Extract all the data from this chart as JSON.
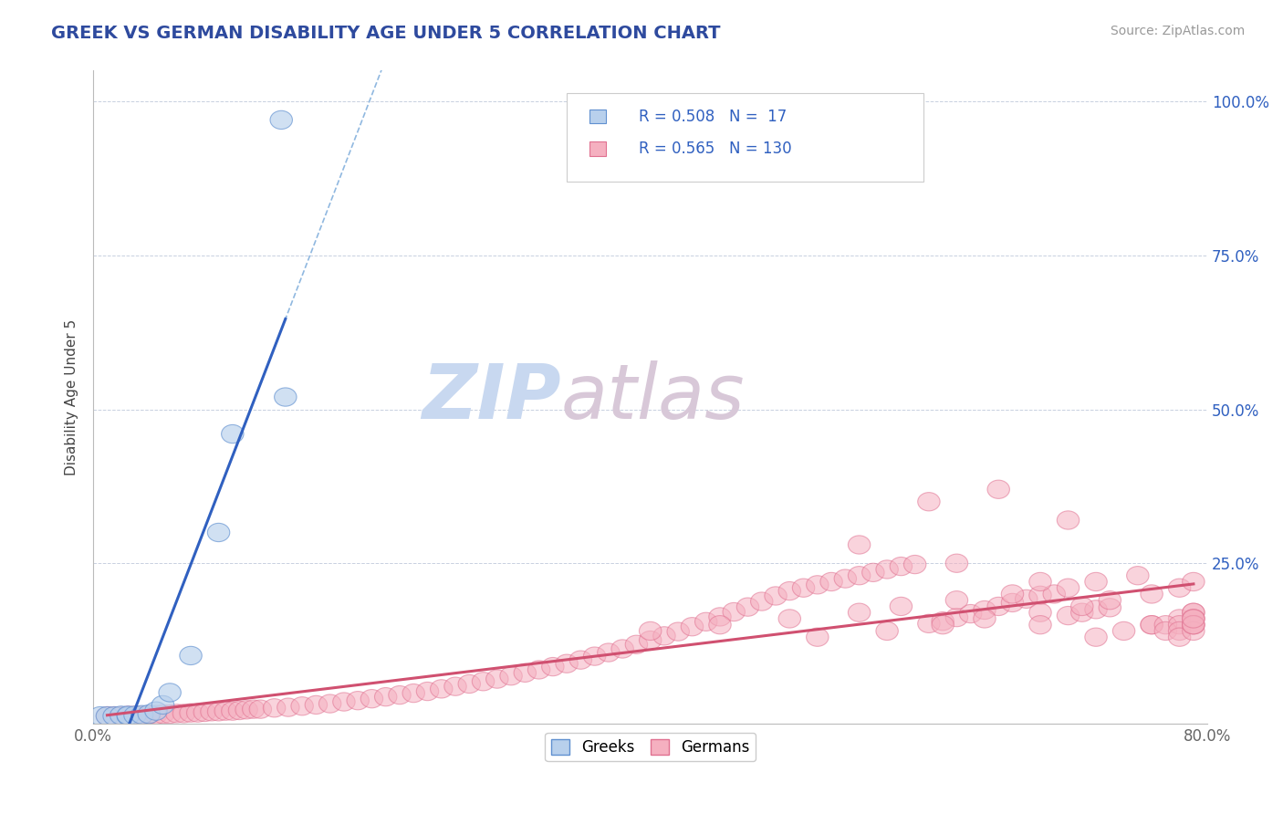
{
  "title": "GREEK VS GERMAN DISABILITY AGE UNDER 5 CORRELATION CHART",
  "source_text": "Source: ZipAtlas.com",
  "ylabel": "Disability Age Under 5",
  "ytick_labels": [
    "25.0%",
    "50.0%",
    "75.0%",
    "100.0%"
  ],
  "ytick_values": [
    0.25,
    0.5,
    0.75,
    1.0
  ],
  "xlim": [
    0.0,
    0.8
  ],
  "ylim": [
    -0.01,
    1.05
  ],
  "greek_R": 0.508,
  "greek_N": 17,
  "german_R": 0.565,
  "german_N": 130,
  "title_color": "#2E4A9E",
  "title_fontsize": 14,
  "greek_color": "#b8d0ec",
  "german_color": "#f5b0c0",
  "greek_edge_color": "#6090d0",
  "german_edge_color": "#e07090",
  "greek_line_color": "#3060c0",
  "german_line_color": "#d05070",
  "dashed_line_color": "#90b8e0",
  "watermark_zip_color": "#c8d8f0",
  "watermark_atlas_color": "#d8c8d8",
  "background_color": "#ffffff",
  "legend_color": "#3060c0",
  "greek_scatter_x": [
    0.005,
    0.01,
    0.015,
    0.02,
    0.025,
    0.025,
    0.03,
    0.035,
    0.04,
    0.045,
    0.05,
    0.055,
    0.07,
    0.09,
    0.1,
    0.135,
    0.138
  ],
  "greek_scatter_y": [
    0.002,
    0.002,
    0.002,
    0.003,
    0.002,
    0.003,
    0.003,
    0.004,
    0.005,
    0.01,
    0.02,
    0.04,
    0.1,
    0.3,
    0.46,
    0.97,
    0.52
  ],
  "german_scatter_x": [
    0.01,
    0.015,
    0.02,
    0.025,
    0.03,
    0.035,
    0.04,
    0.045,
    0.05,
    0.055,
    0.06,
    0.065,
    0.07,
    0.075,
    0.08,
    0.085,
    0.09,
    0.095,
    0.1,
    0.105,
    0.11,
    0.115,
    0.12,
    0.13,
    0.14,
    0.15,
    0.16,
    0.17,
    0.18,
    0.19,
    0.2,
    0.21,
    0.22,
    0.23,
    0.24,
    0.25,
    0.26,
    0.27,
    0.28,
    0.29,
    0.3,
    0.31,
    0.32,
    0.33,
    0.34,
    0.35,
    0.36,
    0.37,
    0.38,
    0.39,
    0.4,
    0.41,
    0.42,
    0.43,
    0.44,
    0.45,
    0.46,
    0.47,
    0.48,
    0.49,
    0.5,
    0.51,
    0.52,
    0.53,
    0.54,
    0.55,
    0.56,
    0.57,
    0.58,
    0.59,
    0.6,
    0.61,
    0.62,
    0.63,
    0.64,
    0.65,
    0.66,
    0.67,
    0.68,
    0.69,
    0.7,
    0.71,
    0.72,
    0.73,
    0.6,
    0.65,
    0.7,
    0.55,
    0.62,
    0.68,
    0.4,
    0.45,
    0.5,
    0.55,
    0.58,
    0.62,
    0.66,
    0.7,
    0.72,
    0.75,
    0.52,
    0.57,
    0.61,
    0.64,
    0.68,
    0.71,
    0.73,
    0.76,
    0.78,
    0.79,
    0.72,
    0.68,
    0.74,
    0.76,
    0.78,
    0.79,
    0.76,
    0.77,
    0.79,
    0.79,
    0.77,
    0.78,
    0.79,
    0.78,
    0.79,
    0.78,
    0.79,
    0.79,
    0.79,
    0.79
  ],
  "german_scatter_y": [
    0.002,
    0.002,
    0.002,
    0.003,
    0.003,
    0.003,
    0.004,
    0.004,
    0.005,
    0.005,
    0.006,
    0.006,
    0.007,
    0.007,
    0.008,
    0.009,
    0.009,
    0.01,
    0.01,
    0.011,
    0.012,
    0.013,
    0.013,
    0.015,
    0.016,
    0.018,
    0.02,
    0.022,
    0.025,
    0.027,
    0.03,
    0.033,
    0.036,
    0.039,
    0.042,
    0.046,
    0.05,
    0.054,
    0.058,
    0.062,
    0.067,
    0.072,
    0.077,
    0.082,
    0.087,
    0.093,
    0.099,
    0.105,
    0.111,
    0.118,
    0.125,
    0.132,
    0.139,
    0.147,
    0.155,
    0.163,
    0.171,
    0.179,
    0.188,
    0.197,
    0.205,
    0.21,
    0.215,
    0.22,
    0.225,
    0.23,
    0.235,
    0.24,
    0.245,
    0.248,
    0.152,
    0.156,
    0.162,
    0.168,
    0.174,
    0.18,
    0.186,
    0.192,
    0.198,
    0.2,
    0.165,
    0.17,
    0.175,
    0.178,
    0.35,
    0.37,
    0.32,
    0.28,
    0.25,
    0.22,
    0.14,
    0.15,
    0.16,
    0.17,
    0.18,
    0.19,
    0.2,
    0.21,
    0.22,
    0.23,
    0.13,
    0.14,
    0.15,
    0.16,
    0.17,
    0.18,
    0.19,
    0.2,
    0.21,
    0.22,
    0.13,
    0.15,
    0.14,
    0.15,
    0.16,
    0.17,
    0.15,
    0.15,
    0.16,
    0.17,
    0.14,
    0.15,
    0.16,
    0.14,
    0.15,
    0.13,
    0.14,
    0.15,
    0.15,
    0.16
  ]
}
